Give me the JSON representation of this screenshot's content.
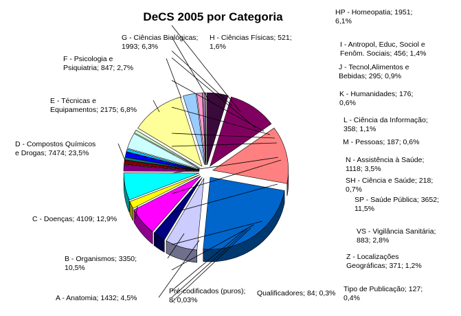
{
  "chart_data": {
    "type": "pie",
    "title": "DeCS 2005 por Categoria",
    "slices": [
      {
        "label": "A - Anatomia",
        "value": 1432,
        "percent": "4,5%",
        "text": [
          "A - Anatomia; 1432; 4,5%"
        ],
        "color": "#3a0a3a"
      },
      {
        "label": "B - Organismos",
        "value": 3350,
        "percent": "10,5%",
        "text": [
          "B - Organismos; 3350;",
          "10,5%"
        ],
        "color": "#800060"
      },
      {
        "label": "C - Doenças",
        "value": 4109,
        "percent": "12,9%",
        "text": [
          "C - Doenças; 4109; 12,9%"
        ],
        "color": "#ff8080"
      },
      {
        "label": "D - Compostos Químicos e Drogas",
        "value": 7474,
        "percent": "23,5%",
        "text": [
          "D - Compostos Químicos",
          "e Drogas; 7474; 23,5%"
        ],
        "color": "#0066cc"
      },
      {
        "label": "E - Técnicas e Equipamentos",
        "value": 2175,
        "percent": "6,8%",
        "text": [
          "E - Técnicas e",
          "Equipamentos; 2175; 6,8%"
        ],
        "color": "#ccccff"
      },
      {
        "label": "F - Psicologia e Psiquiatria",
        "value": 847,
        "percent": "2,7%",
        "text": [
          "F - Psicologia e",
          "Psiquiatria; 847; 2,7%"
        ],
        "color": "#000080"
      },
      {
        "label": "G - Ciências Biológicas",
        "value": 1993,
        "percent": "6,3%",
        "text": [
          "G - Ciências Biológicas;",
          "1993; 6,3%"
        ],
        "color": "#ff00ff"
      },
      {
        "label": "H - Ciências Físicas",
        "value": 521,
        "percent": "1,6%",
        "text": [
          "H - Ciências Físicas; 521;",
          "1,6%"
        ],
        "color": "#ffff00"
      },
      {
        "label": "HP - Homeopatia",
        "value": 1951,
        "percent": "6,1%",
        "text": [
          "HP - Homeopatia; 1951;",
          "6,1%"
        ],
        "color": "#00ffff"
      },
      {
        "label": "I - Antropol, Educ, Sociol e Fenôm. Sociais",
        "value": 456,
        "percent": "1,4%",
        "text": [
          "I - Antropol, Educ, Sociol e",
          "Fenôm. Sociais; 456; 1,4%"
        ],
        "color": "#800080"
      },
      {
        "label": "J - Tecnol,Alimentos e Bebidas",
        "value": 295,
        "percent": "0,9%",
        "text": [
          "J - Tecnol,Alimentos e",
          "Bebidas; 295; 0,9%"
        ],
        "color": "#800000"
      },
      {
        "label": "K - Humanidades",
        "value": 176,
        "percent": "0,6%",
        "text": [
          "K - Humanidades; 176;",
          "0,6%"
        ],
        "color": "#008080"
      },
      {
        "label": "L - Ciência da Informação",
        "value": 358,
        "percent": "1,1%",
        "text": [
          "L - Ciência da Informação;",
          "358; 1,1%"
        ],
        "color": "#0000ff"
      },
      {
        "label": "M - Pessoas",
        "value": 187,
        "percent": "0,6%",
        "text": [
          "M - Pessoas; 187; 0,6%"
        ],
        "color": "#00ccff"
      },
      {
        "label": "N - Assistência à Saúde",
        "value": 1118,
        "percent": "3,5%",
        "text": [
          "N - Assistência à Saúde;",
          "1118; 3,5%"
        ],
        "color": "#ccffff"
      },
      {
        "label": "SH - Ciência e Saúde",
        "value": 218,
        "percent": "0,7%",
        "text": [
          "SH - Ciência e Saúde; 218;",
          "0,7%"
        ],
        "color": "#ccffcc"
      },
      {
        "label": "SP - Saúde Pública",
        "value": 3652,
        "percent": "11,5%",
        "text": [
          "SP - Saúde Pública; 3652;",
          "11,5%"
        ],
        "color": "#ffff99"
      },
      {
        "label": "VS - Vigilância Sanitária",
        "value": 883,
        "percent": "2,8%",
        "text": [
          "VS - Vigilância Sanitária;",
          "883; 2,8%"
        ],
        "color": "#99ccff"
      },
      {
        "label": "Z - Localizações Geográficas",
        "value": 371,
        "percent": "1,2%",
        "text": [
          "Z - Localizações",
          "Geográficas; 371; 1,2%"
        ],
        "color": "#ff99cc"
      },
      {
        "label": "Tipo de Publicação",
        "value": 127,
        "percent": "0,4%",
        "text": [
          "Tipo de Publicação; 127;",
          "0,4%"
        ],
        "color": "#cc99ff"
      },
      {
        "label": "Qualificadores",
        "value": 84,
        "percent": "0,3%",
        "text": [
          "Qualificadores; 84; 0,3%"
        ],
        "color": "#ffcc99"
      },
      {
        "label": "Pré-codificados (puros)",
        "value": 8,
        "percent": "0,03%",
        "text": [
          "Pré-codificados (puros);",
          "8; 0,03%"
        ],
        "color": "#3366ff"
      }
    ],
    "legend": "none",
    "style": "3d-exploded"
  }
}
